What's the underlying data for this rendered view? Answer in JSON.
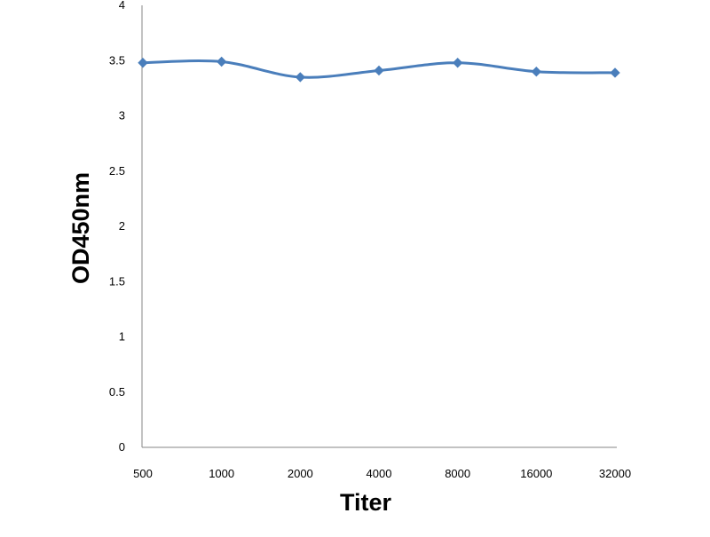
{
  "chart_data": {
    "type": "line",
    "title": "",
    "xlabel": "Titer",
    "ylabel": "OD450nm",
    "categories": [
      "500",
      "1000",
      "2000",
      "4000",
      "8000",
      "16000",
      "32000"
    ],
    "series": [
      {
        "values": [
          3.48,
          3.49,
          3.35,
          3.41,
          3.48,
          3.4,
          3.39
        ],
        "color": "#4A7EBB",
        "marker": "diamond"
      }
    ],
    "ylim": [
      0,
      4
    ],
    "yticks": [
      0,
      0.5,
      1,
      1.5,
      2,
      2.5,
      3,
      3.5,
      4
    ],
    "ytick_labels": [
      "0",
      "0.5",
      "1",
      "1.5",
      "2",
      "2.5",
      "3",
      "3.5",
      "4"
    ],
    "grid": false,
    "legend": "none",
    "axis_color": "#868686"
  }
}
